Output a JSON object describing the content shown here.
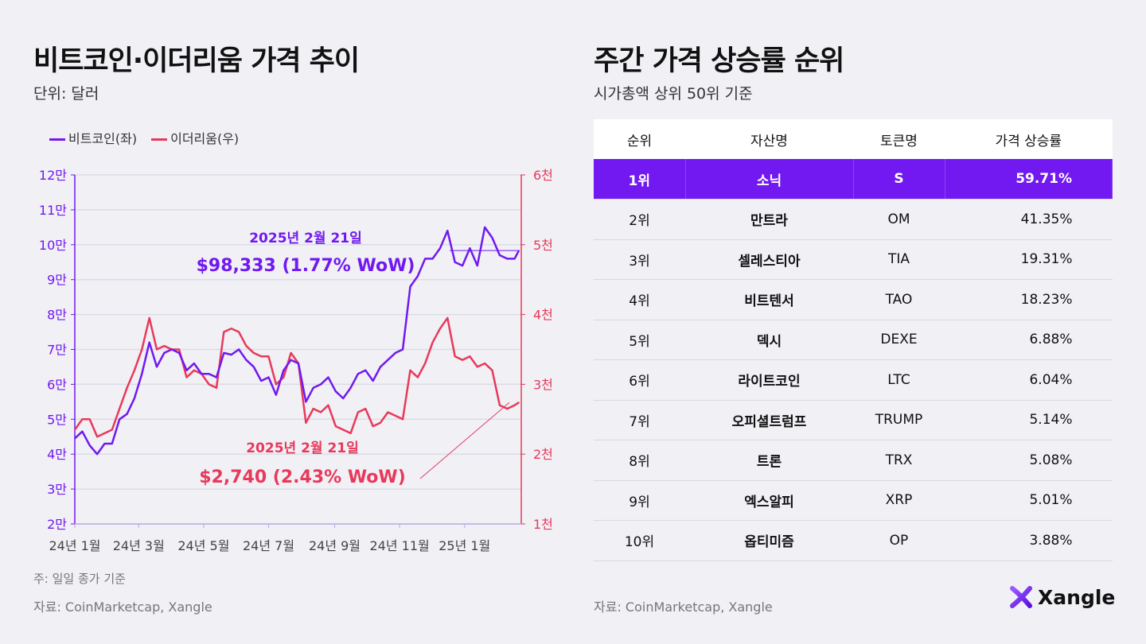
{
  "left": {
    "title": "비트코인·이더리움 가격 추이",
    "subtitle": "단위: 달러",
    "note": "주: 일일 종가 기준",
    "source": "자료: CoinMarketcap, Xangle"
  },
  "right": {
    "title": "주간 가격 상승률 순위",
    "subtitle": "시가총액 상위 50위 기준",
    "source": "자료: CoinMarketcap, Xangle"
  },
  "table": {
    "headers": [
      "순위",
      "자산명",
      "토큰명",
      "가격 상승률"
    ],
    "rows": [
      [
        "1위",
        "소닉",
        "S",
        "59.71%"
      ],
      [
        "2위",
        "만트라",
        "OM",
        "41.35%"
      ],
      [
        "3위",
        "셀레스티아",
        "TIA",
        "19.31%"
      ],
      [
        "4위",
        "비트텐서",
        "TAO",
        "18.23%"
      ],
      [
        "5위",
        "덱시",
        "DEXE",
        "6.88%"
      ],
      [
        "6위",
        "라이트코인",
        "LTC",
        "6.04%"
      ],
      [
        "7위",
        "오피셜트럼프",
        "TRUMP",
        "5.14%"
      ],
      [
        "8위",
        "트론",
        "TRX",
        "5.08%"
      ],
      [
        "9위",
        "엑스알피",
        "XRP",
        "5.01%"
      ],
      [
        "10위",
        "옵티미즘",
        "OP",
        "3.88%"
      ]
    ],
    "highlight_color": "#7119f0"
  },
  "logo": "Xangle",
  "chart_data": {
    "type": "line",
    "legend_position": "top-left",
    "grid": true,
    "x_tick_labels": [
      "24년 1월",
      "24년 3월",
      "24년 5월",
      "24년 7월",
      "24년 9월",
      "24년 11월",
      "25년 1월"
    ],
    "x_ticks": [
      "2024-01-01",
      "2024-03-01",
      "2024-05-01",
      "2024-07-01",
      "2024-09-01",
      "2024-11-01",
      "2025-01-01"
    ],
    "xlim": [
      "2024-01-01",
      "2025-02-21"
    ],
    "y_left": {
      "lim": [
        20000,
        120000
      ],
      "tick_labels": [
        "2만",
        "3만",
        "4만",
        "5만",
        "6만",
        "7만",
        "8만",
        "9만",
        "10만",
        "11만",
        "12만"
      ],
      "color": "#7119f0"
    },
    "y_right": {
      "lim": [
        1000,
        6000
      ],
      "tick_labels": [
        "1천",
        "2천",
        "3천",
        "4천",
        "5천",
        "6천"
      ],
      "color": "#e8395b"
    },
    "x": [
      "2024-01-01",
      "2024-01-08",
      "2024-01-15",
      "2024-01-22",
      "2024-01-29",
      "2024-02-05",
      "2024-02-12",
      "2024-02-19",
      "2024-02-26",
      "2024-03-04",
      "2024-03-11",
      "2024-03-18",
      "2024-03-25",
      "2024-04-01",
      "2024-04-08",
      "2024-04-15",
      "2024-04-22",
      "2024-04-29",
      "2024-05-06",
      "2024-05-13",
      "2024-05-20",
      "2024-05-27",
      "2024-06-03",
      "2024-06-10",
      "2024-06-17",
      "2024-06-24",
      "2024-07-01",
      "2024-07-08",
      "2024-07-15",
      "2024-07-22",
      "2024-07-29",
      "2024-08-05",
      "2024-08-12",
      "2024-08-19",
      "2024-08-26",
      "2024-09-02",
      "2024-09-09",
      "2024-09-16",
      "2024-09-23",
      "2024-09-30",
      "2024-10-07",
      "2024-10-14",
      "2024-10-21",
      "2024-10-28",
      "2024-11-04",
      "2024-11-11",
      "2024-11-18",
      "2024-11-25",
      "2024-12-02",
      "2024-12-09",
      "2024-12-16",
      "2024-12-23",
      "2024-12-30",
      "2025-01-06",
      "2025-01-13",
      "2025-01-20",
      "2025-01-27",
      "2025-02-03",
      "2025-02-10",
      "2025-02-17",
      "2025-02-21"
    ],
    "series": [
      {
        "name": "비트코인(좌)",
        "axis": "left",
        "color": "#7119f0",
        "values": [
          44500,
          46500,
          42500,
          40000,
          43000,
          43000,
          50000,
          51500,
          56000,
          63000,
          72000,
          65000,
          69000,
          70000,
          69000,
          64000,
          66000,
          63000,
          63000,
          62000,
          69000,
          68500,
          70000,
          67000,
          65000,
          61000,
          62000,
          57000,
          64000,
          67000,
          66000,
          55000,
          59000,
          60000,
          62000,
          58000,
          56000,
          59000,
          63000,
          64000,
          61000,
          65000,
          67000,
          69000,
          70000,
          88000,
          91000,
          96000,
          96000,
          99000,
          104000,
          95000,
          94000,
          99000,
          94000,
          105000,
          102000,
          97000,
          96000,
          96000,
          98333
        ]
      },
      {
        "name": "이더리움(우)",
        "axis": "right",
        "color": "#e8395b",
        "values": [
          2350,
          2500,
          2500,
          2250,
          2300,
          2350,
          2650,
          2950,
          3200,
          3500,
          3950,
          3500,
          3550,
          3500,
          3500,
          3100,
          3200,
          3150,
          3000,
          2950,
          3750,
          3800,
          3750,
          3550,
          3450,
          3400,
          3400,
          3000,
          3100,
          3450,
          3300,
          2450,
          2650,
          2600,
          2700,
          2400,
          2350,
          2300,
          2600,
          2650,
          2400,
          2450,
          2600,
          2550,
          2500,
          3200,
          3100,
          3300,
          3600,
          3800,
          3950,
          3400,
          3350,
          3400,
          3250,
          3300,
          3200,
          2700,
          2650,
          2700,
          2740
        ]
      }
    ],
    "annotations": [
      {
        "series": "비트코인(좌)",
        "date_label": "2025년 2월 21일",
        "value_label": "$98,333 (1.77% WoW)"
      },
      {
        "series": "이더리움(우)",
        "date_label": "2025년 2월 21일",
        "value_label": "$2,740 (2.43% WoW)"
      }
    ]
  }
}
